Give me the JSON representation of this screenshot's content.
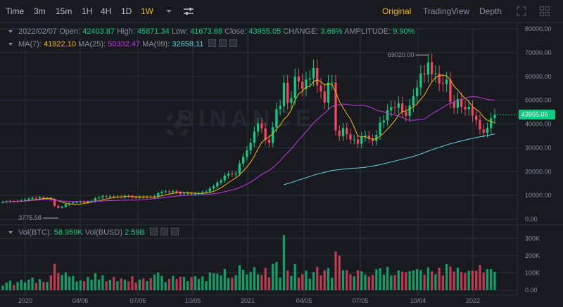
{
  "toolbar": {
    "intervals": [
      "Time",
      "3m",
      "15m",
      "1H",
      "4H",
      "1D",
      "1W"
    ],
    "active_interval": "1W",
    "views": [
      "Original",
      "TradingView",
      "Depth"
    ],
    "active_view": "Original",
    "icons": [
      "chevron-down-icon",
      "settings-sliders-icon",
      "expand-icon",
      "grid-icon"
    ]
  },
  "ohlc": {
    "date": "2022/02/07",
    "open_label": "Open:",
    "open": "42403.87",
    "high_label": "High:",
    "high": "45871.34",
    "low_label": "Low:",
    "low": "41673.68",
    "close_label": "Close:",
    "close": "43955.05",
    "change_label": "CHANGE:",
    "change": "3.66%",
    "amplitude_label": "AMPLITUDE:",
    "amplitude": "9.90%"
  },
  "ma": {
    "ma7_label": "MA(7):",
    "ma7": "41822.10",
    "ma25_label": "MA(25):",
    "ma25": "50332.47",
    "ma99_label": "MA(99):",
    "ma99": "32658.11"
  },
  "volume": {
    "btc_label": "Vol(BTC):",
    "btc": "58.959K",
    "busd_label": "Vol(BUSD)",
    "busd": "2.59B"
  },
  "watermark": "BINANCE",
  "annotations": {
    "max_label": "69020.00",
    "min_label": "3775.58"
  },
  "current_price": "43955.05",
  "colors": {
    "up": "#0ecb81",
    "down": "#f6465d",
    "accent": "#f0b90b",
    "ma7": "#f0b90b",
    "ma25": "#c039e0",
    "ma99": "#5ed6e0",
    "background": "#181a20",
    "grid": "#2b3139"
  },
  "chart_data": [
    {
      "type": "candlestick",
      "title": "",
      "y_axis": [
        "80000.00",
        "70000.00",
        "60000.00",
        "50000.00",
        "40000.00",
        "30000.00",
        "20000.00",
        "10000.00",
        "0.00"
      ],
      "ylim": [
        0,
        80000
      ],
      "x_axis": [
        "2020",
        "04/06",
        "07/06",
        "10/05",
        "2021",
        "04/05",
        "07/05",
        "10/04",
        "2022"
      ],
      "close_path": [
        7200,
        7400,
        7600,
        7500,
        7700,
        7900,
        8200,
        8600,
        9000,
        8800,
        9200,
        8700,
        8900,
        8100,
        5600,
        4800,
        5200,
        6100,
        6600,
        7000,
        7200,
        7300,
        6900,
        7500,
        7600,
        8800,
        9100,
        9700,
        9400,
        9600,
        9300,
        9500,
        9200,
        9800,
        9700,
        9200,
        9100,
        9300,
        9200,
        9400,
        9100,
        9600,
        10900,
        11500,
        11700,
        11300,
        11800,
        11200,
        10600,
        10800,
        10900,
        10500,
        10700,
        11000,
        11400,
        11600,
        12900,
        13800,
        15400,
        16300,
        18300,
        19100,
        18800,
        19200,
        23400,
        26200,
        28900,
        32100,
        36800,
        40300,
        38200,
        33400,
        32100,
        38600,
        46300,
        47500,
        57300,
        48900,
        50900,
        59900,
        57800,
        54700,
        58700,
        59200,
        63500,
        56200,
        53700,
        49000,
        57400,
        57400,
        37300,
        34900,
        38300,
        35700,
        33500,
        33500,
        31700,
        34600,
        35100,
        33800,
        32800,
        35400,
        40600,
        41500,
        45800,
        47100,
        46800,
        48700,
        45100,
        43400,
        47800,
        51700,
        55300,
        61200,
        60800,
        65900,
        60900,
        61200,
        57100,
        56700,
        58600,
        49400,
        46800,
        50500,
        47200,
        46200,
        47200,
        43500,
        41700,
        37700,
        36300,
        38300,
        42400,
        43955
      ],
      "events": {
        "low": {
          "value": 3775.58,
          "label": "3775.58"
        },
        "high": {
          "value": 69020.0,
          "label": "69020.00"
        }
      },
      "current": 43955.05
    },
    {
      "type": "bar",
      "title": "Volume",
      "y_axis": [
        "300K",
        "200K",
        "100K",
        "0.00"
      ],
      "ylim": [
        0,
        350000
      ]
    }
  ]
}
